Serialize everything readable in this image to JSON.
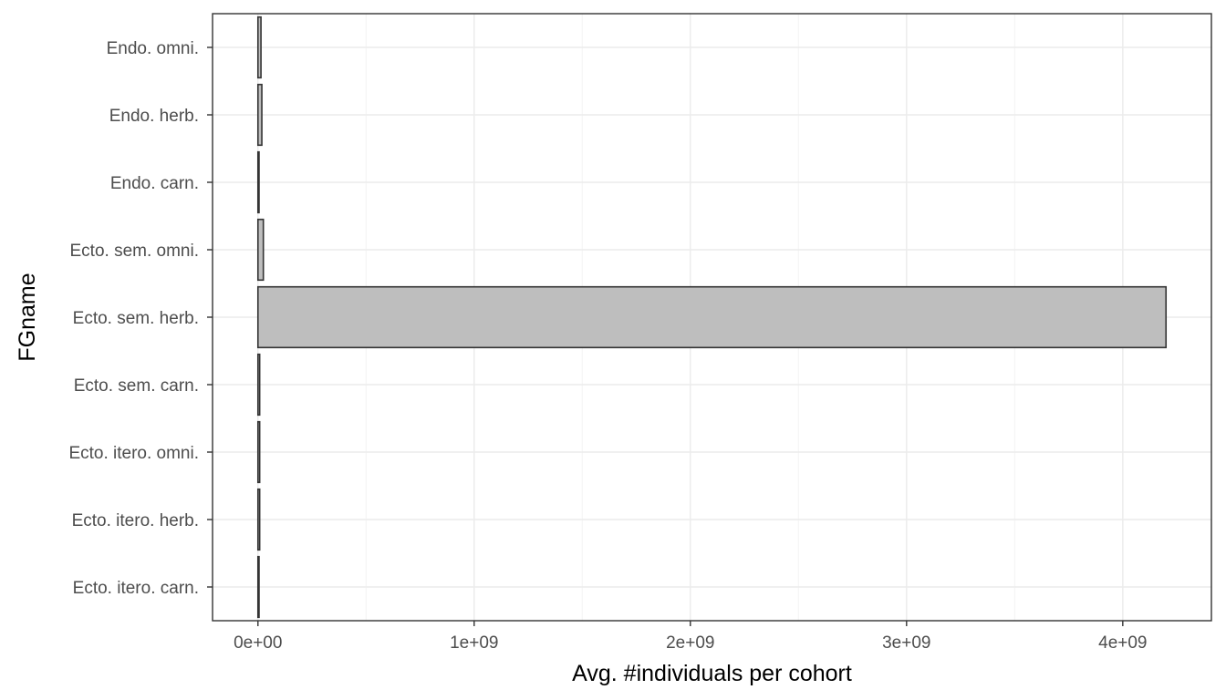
{
  "chart_data": {
    "type": "bar",
    "orientation": "horizontal",
    "categories": [
      "Ecto. itero. carn.",
      "Ecto. itero. herb.",
      "Ecto. itero. omni.",
      "Ecto. sem. carn.",
      "Ecto. sem. herb.",
      "Ecto. sem. omni.",
      "Endo. carn.",
      "Endo. herb.",
      "Endo. omni."
    ],
    "values": [
      5000000,
      8000000,
      8000000,
      8000000,
      4200000000,
      25000000,
      5000000,
      18000000,
      14000000
    ],
    "xlabel": "Avg. #individuals per cohort",
    "ylabel": "FGname",
    "xlim": [
      -210000000,
      4410000000
    ],
    "xticks": [
      0,
      1000000000,
      2000000000,
      3000000000,
      4000000000
    ],
    "xtick_labels": [
      "0e+00",
      "1e+09",
      "2e+09",
      "3e+09",
      "4e+09"
    ],
    "grid": true,
    "legend": "none",
    "colors": {
      "bar_fill": "#bebebe",
      "bar_outline": "#333333",
      "grid": "#ebebeb",
      "panel_border": "#333333"
    }
  }
}
